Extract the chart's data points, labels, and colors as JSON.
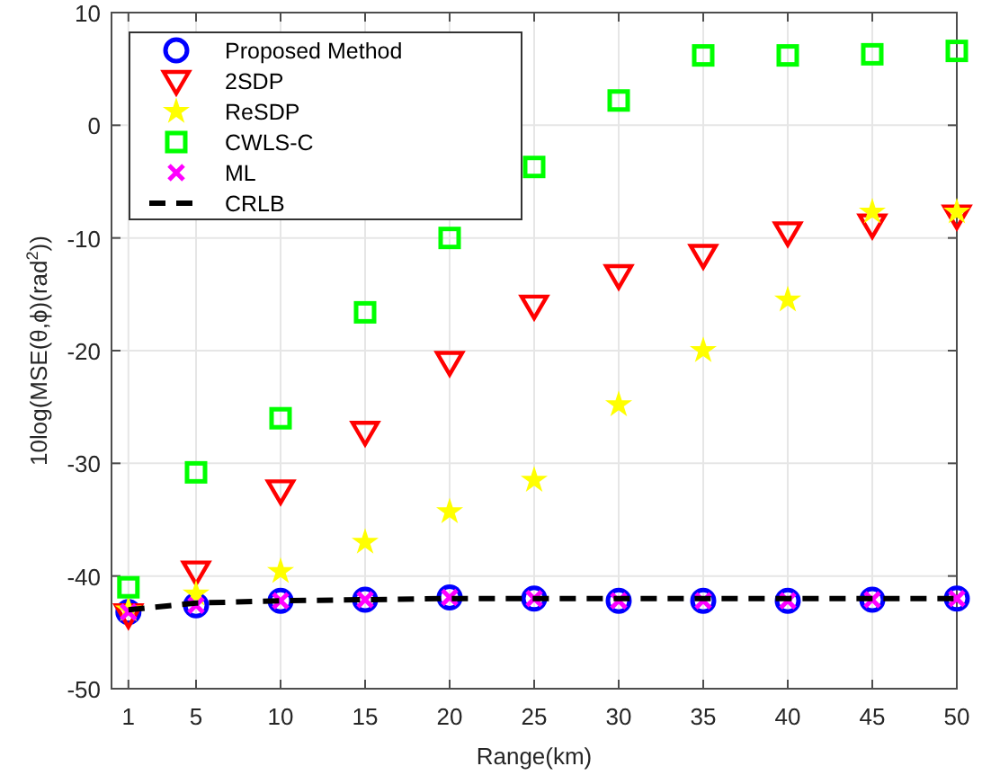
{
  "chart_data": {
    "type": "scatter",
    "xlabel": "Range(km)",
    "ylabel": "10log(MSE(θ,ϕ)(rad$^{2}$))",
    "x": [
      1,
      5,
      10,
      15,
      20,
      25,
      30,
      35,
      40,
      45,
      50
    ],
    "xlim": [
      0,
      50
    ],
    "xticks": [
      1,
      5,
      10,
      15,
      20,
      25,
      30,
      35,
      40,
      45,
      50
    ],
    "ylim": [
      -50,
      10
    ],
    "yticks": [
      -50,
      -40,
      -30,
      -20,
      -10,
      0,
      10
    ],
    "grid": true,
    "legend": "top left",
    "series": [
      {
        "name": "Proposed Method",
        "color": "#0000ff",
        "marker": "circle",
        "values": [
          -43.2,
          -42.6,
          -42.2,
          -42.1,
          -41.9,
          -42,
          -42.2,
          -42.2,
          -42.2,
          -42.1,
          -42
        ]
      },
      {
        "name": "2SDP",
        "color": "#ff0000",
        "marker": "triangle",
        "values": [
          -43.4,
          -39.6,
          -32.4,
          -27.2,
          -21,
          -16,
          -13.3,
          -11.5,
          -9.5,
          -8.8,
          -8
        ]
      },
      {
        "name": "ReSDP",
        "color": "#ffff00",
        "marker": "star",
        "values": [
          -43,
          -41.6,
          -39.6,
          -37,
          -34.3,
          -31.5,
          -24.8,
          -20,
          -15.5,
          -7.7,
          -7.7
        ]
      },
      {
        "name": "CWLS-C",
        "color": "#00ff00",
        "marker": "square",
        "values": [
          -41,
          -30.8,
          -26,
          -16.6,
          -10,
          -3.7,
          2.2,
          6.2,
          6.2,
          6.3,
          6.6
        ]
      },
      {
        "name": "ML",
        "color": "#ff00ff",
        "marker": "cross",
        "values": [
          -43.2,
          -42.6,
          -42.2,
          -42.1,
          -41.9,
          -42,
          -42.2,
          -42.2,
          -42.2,
          -42.1,
          -42
        ]
      },
      {
        "name": "CRLB",
        "type": "line",
        "color": "#000000",
        "marker": "none",
        "line_style": "dashed",
        "values": [
          -43,
          -42.4,
          -42.2,
          -42.1,
          -42,
          -42,
          -42,
          -42,
          -42,
          -42,
          -42
        ]
      }
    ]
  }
}
